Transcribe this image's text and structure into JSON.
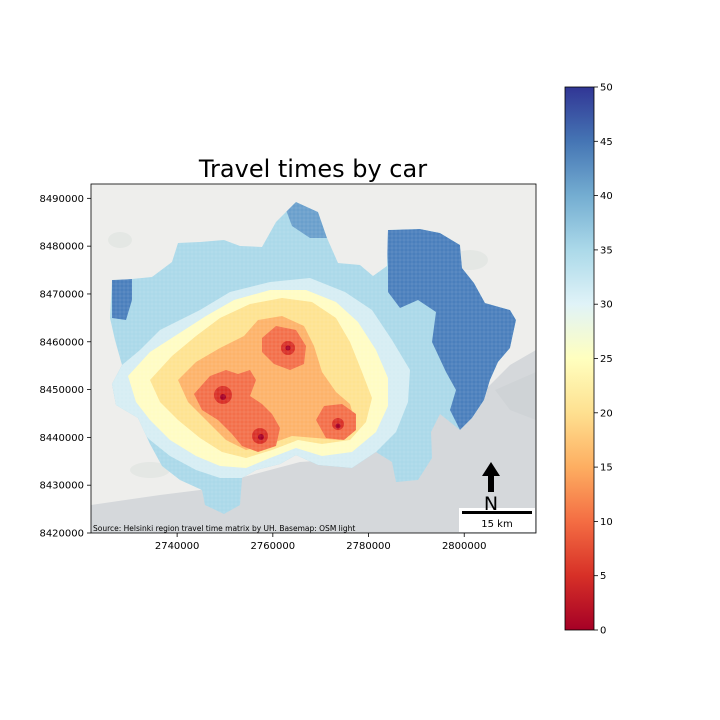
{
  "chart_data": {
    "type": "heatmap",
    "title": "Travel times by car",
    "x_ticks": [
      "2740000",
      "2760000",
      "2780000",
      "2800000"
    ],
    "x_tick_values": [
      2740000,
      2760000,
      2780000,
      2800000
    ],
    "y_ticks": [
      "8420000",
      "8430000",
      "8440000",
      "8450000",
      "8460000",
      "8470000",
      "8480000",
      "8490000"
    ],
    "y_tick_values": [
      8420000,
      8430000,
      8440000,
      8450000,
      8460000,
      8470000,
      8480000,
      8490000
    ],
    "xlim": [
      2722000,
      2815000
    ],
    "ylim": [
      8420000,
      8493000
    ],
    "colorbar": {
      "min": 0,
      "max": 50,
      "ticks": [
        "0",
        "5",
        "10",
        "15",
        "20",
        "25",
        "30",
        "35",
        "40",
        "45",
        "50"
      ],
      "colormap": "RdYlBu",
      "stops": [
        "#a50026",
        "#d73027",
        "#f46d43",
        "#fdae61",
        "#fee090",
        "#ffffbf",
        "#e0f3f8",
        "#abd9e9",
        "#74add1",
        "#4575b4",
        "#313695"
      ]
    },
    "hotspots": [
      {
        "x": 2751000,
        "y": 8448000,
        "value": 0
      },
      {
        "x": 2765000,
        "y": 8458500,
        "value": 1
      },
      {
        "x": 2757500,
        "y": 8439500,
        "value": 1
      },
      {
        "x": 2775000,
        "y": 8442000,
        "value": 2
      }
    ],
    "legend": "none",
    "grid": false
  },
  "annotations": {
    "north_label": "N",
    "scale_label": "15 km",
    "credit": "Source: Helsinki region travel time matrix by UH. Basemap: OSM light"
  },
  "colors": {
    "land": "#eeeeec",
    "sea": "#d5d8db"
  }
}
